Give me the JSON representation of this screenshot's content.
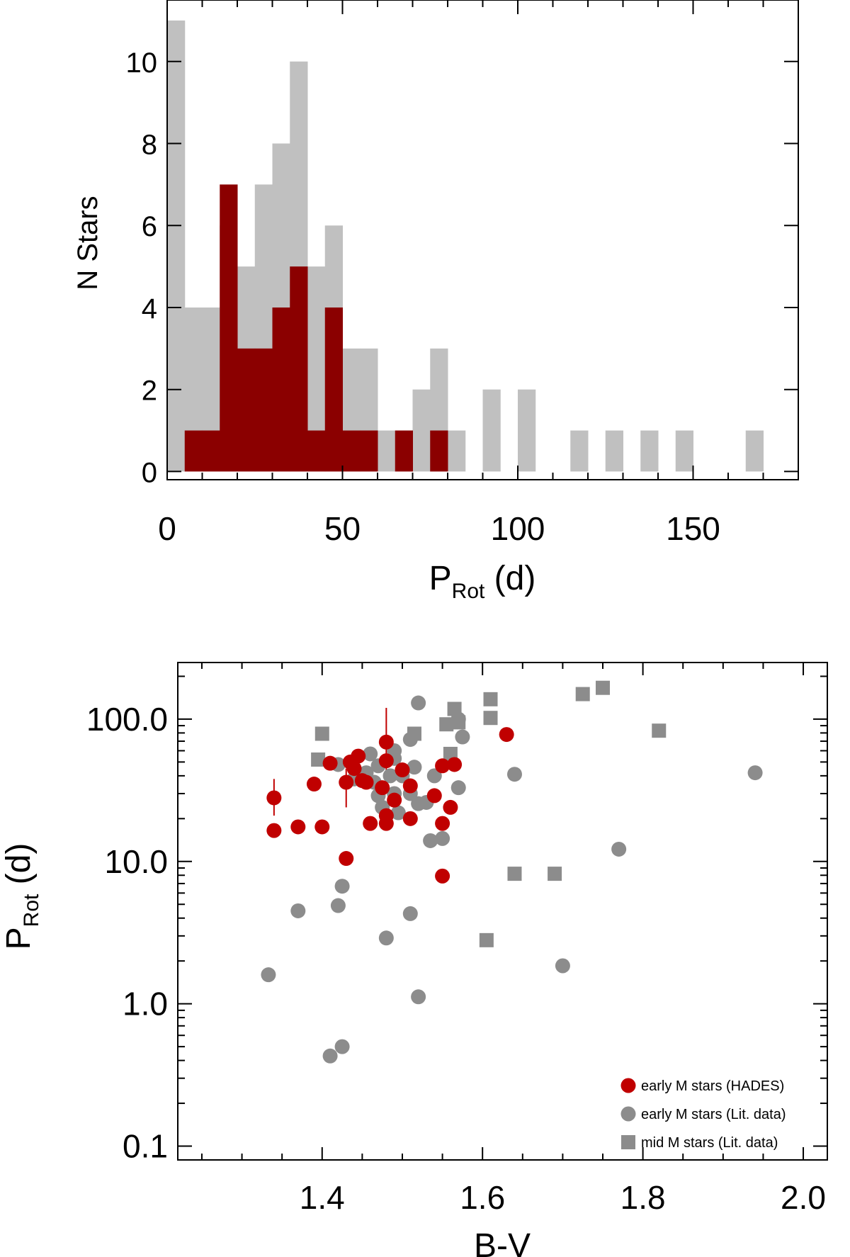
{
  "chart_data": [
    {
      "type": "bar",
      "subtype": "histogram",
      "xlabel": "P",
      "xlabel_sub": "Rot",
      "xlabel_unit": " (d)",
      "ylabel": "N Stars",
      "xlim": [
        0,
        180
      ],
      "ylim": [
        -0.2,
        11.5
      ],
      "xticks": [
        0,
        50,
        100,
        150
      ],
      "yticks": [
        0,
        2,
        4,
        6,
        8,
        10
      ],
      "bin_width": 5,
      "series": [
        {
          "color": "#c0c0c0",
          "bins": [
            {
              "x0": 0,
              "count": 11
            },
            {
              "x0": 5,
              "count": 4
            },
            {
              "x0": 10,
              "count": 4
            },
            {
              "x0": 15,
              "count": 6
            },
            {
              "x0": 20,
              "count": 5
            },
            {
              "x0": 25,
              "count": 7
            },
            {
              "x0": 30,
              "count": 8
            },
            {
              "x0": 35,
              "count": 10
            },
            {
              "x0": 40,
              "count": 5
            },
            {
              "x0": 45,
              "count": 6
            },
            {
              "x0": 50,
              "count": 3
            },
            {
              "x0": 55,
              "count": 3
            },
            {
              "x0": 60,
              "count": 1
            },
            {
              "x0": 65,
              "count": 1
            },
            {
              "x0": 70,
              "count": 2
            },
            {
              "x0": 75,
              "count": 3
            },
            {
              "x0": 80,
              "count": 1
            },
            {
              "x0": 90,
              "count": 2
            },
            {
              "x0": 100,
              "count": 2
            },
            {
              "x0": 115,
              "count": 1
            },
            {
              "x0": 125,
              "count": 1
            },
            {
              "x0": 135,
              "count": 1
            },
            {
              "x0": 145,
              "count": 1
            },
            {
              "x0": 165,
              "count": 1
            }
          ]
        },
        {
          "color": "#8b0000",
          "bins": [
            {
              "x0": 5,
              "count": 1
            },
            {
              "x0": 10,
              "count": 1
            },
            {
              "x0": 15,
              "count": 7
            },
            {
              "x0": 20,
              "count": 3
            },
            {
              "x0": 25,
              "count": 3
            },
            {
              "x0": 30,
              "count": 4
            },
            {
              "x0": 35,
              "count": 5
            },
            {
              "x0": 40,
              "count": 1
            },
            {
              "x0": 45,
              "count": 4
            },
            {
              "x0": 50,
              "count": 1
            },
            {
              "x0": 55,
              "count": 1
            },
            {
              "x0": 65,
              "count": 1
            },
            {
              "x0": 75,
              "count": 1
            }
          ]
        }
      ]
    },
    {
      "type": "scatter",
      "xlabel": "B-V",
      "ylabel": "P",
      "ylabel_sub": "Rot",
      "ylabel_unit": " (d)",
      "yscale": "log",
      "xlim": [
        1.22,
        2.03
      ],
      "ylim": [
        0.08,
        250
      ],
      "xticks": [
        1.4,
        1.6,
        1.8,
        2.0
      ],
      "xtick_labels": [
        "1.4",
        "1.6",
        "1.8",
        "2.0"
      ],
      "yticks": [
        0.1,
        1,
        10,
        100
      ],
      "ytick_labels": [
        "0.1",
        "1.0",
        "10.0",
        "100.0"
      ],
      "legend_position": "bottom-right",
      "series": [
        {
          "name": "early M stars (HADES)",
          "marker": "circle",
          "color": "#c00000",
          "points": [
            [
              1.34,
              28
            ],
            [
              1.34,
              16.5
            ],
            [
              1.37,
              17.5
            ],
            [
              1.39,
              35
            ],
            [
              1.4,
              17.5
            ],
            [
              1.41,
              49
            ],
            [
              1.43,
              36
            ],
            [
              1.43,
              10.5
            ],
            [
              1.435,
              50
            ],
            [
              1.44,
              45
            ],
            [
              1.445,
              55
            ],
            [
              1.45,
              37
            ],
            [
              1.455,
              36
            ],
            [
              1.46,
              18.5
            ],
            [
              1.475,
              33
            ],
            [
              1.48,
              69
            ],
            [
              1.48,
              51
            ],
            [
              1.48,
              21
            ],
            [
              1.48,
              18.5
            ],
            [
              1.49,
              27
            ],
            [
              1.5,
              44
            ],
            [
              1.51,
              34
            ],
            [
              1.51,
              20
            ],
            [
              1.54,
              29
            ],
            [
              1.55,
              47
            ],
            [
              1.55,
              18.5
            ],
            [
              1.55,
              7.9
            ],
            [
              1.56,
              24
            ],
            [
              1.565,
              48
            ],
            [
              1.63,
              78
            ]
          ],
          "error_bars": [
            {
              "x": 1.34,
              "y": 28,
              "low": 21,
              "high": 38
            },
            {
              "x": 1.43,
              "y": 36,
              "low": 24,
              "high": 45
            },
            {
              "x": 1.48,
              "y": 51,
              "low": 30,
              "high": 120
            }
          ]
        },
        {
          "name": "early M stars (Lit. data)",
          "marker": "circle",
          "color": "#8c8c8c",
          "points": [
            [
              1.333,
              1.6
            ],
            [
              1.37,
              4.5
            ],
            [
              1.41,
              0.43
            ],
            [
              1.42,
              4.9
            ],
            [
              1.425,
              6.7
            ],
            [
              1.425,
              0.5
            ],
            [
              1.42,
              48
            ],
            [
              1.44,
              38
            ],
            [
              1.455,
              42
            ],
            [
              1.46,
              57
            ],
            [
              1.465,
              36
            ],
            [
              1.47,
              47
            ],
            [
              1.47,
              29
            ],
            [
              1.475,
              24
            ],
            [
              1.48,
              2.9
            ],
            [
              1.485,
              40
            ],
            [
              1.49,
              60
            ],
            [
              1.49,
              53
            ],
            [
              1.49,
              30
            ],
            [
              1.495,
              22
            ],
            [
              1.5,
              40
            ],
            [
              1.51,
              72
            ],
            [
              1.51,
              30
            ],
            [
              1.51,
              4.3
            ],
            [
              1.515,
              46
            ],
            [
              1.52,
              130
            ],
            [
              1.52,
              25.5
            ],
            [
              1.52,
              1.12
            ],
            [
              1.53,
              26
            ],
            [
              1.535,
              14
            ],
            [
              1.54,
              40
            ],
            [
              1.55,
              14.5
            ],
            [
              1.57,
              100
            ],
            [
              1.57,
              33
            ],
            [
              1.575,
              75
            ],
            [
              1.64,
              41
            ],
            [
              1.7,
              1.85
            ],
            [
              1.77,
              12.2
            ],
            [
              1.94,
              42
            ]
          ]
        },
        {
          "name": "mid M stars (Lit. data)",
          "marker": "square",
          "color": "#8c8c8c",
          "points": [
            [
              1.395,
              52
            ],
            [
              1.4,
              79
            ],
            [
              1.515,
              79
            ],
            [
              1.555,
              92
            ],
            [
              1.56,
              57
            ],
            [
              1.565,
              118
            ],
            [
              1.57,
              95
            ],
            [
              1.605,
              2.8
            ],
            [
              1.61,
              138
            ],
            [
              1.61,
              102
            ],
            [
              1.64,
              8.2
            ],
            [
              1.69,
              8.2
            ],
            [
              1.725,
              150
            ],
            [
              1.75,
              166
            ],
            [
              1.82,
              83
            ]
          ]
        }
      ]
    }
  ]
}
